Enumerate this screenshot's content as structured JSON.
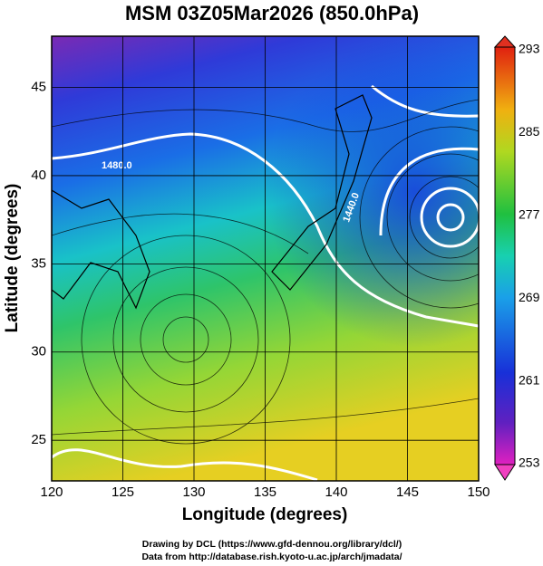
{
  "title": "MSM 03Z05Mar2026 (850.0hPa)",
  "x_axis": {
    "label": "Longitude (degrees)",
    "lim": [
      120,
      150
    ],
    "ticks": [
      120,
      125,
      130,
      135,
      140,
      145,
      150
    ]
  },
  "y_axis": {
    "label": "Latitude  (degrees)",
    "lim": [
      22.7,
      47.9
    ],
    "ticks": [
      25,
      30,
      35,
      40,
      45
    ]
  },
  "colorbar": {
    "lim": [
      253,
      293
    ],
    "ticks": [
      253,
      261,
      269,
      277,
      285,
      293
    ]
  },
  "contour_labels": [
    "1480.0",
    "1440.0"
  ],
  "footer": [
    "Drawing by DCL (https://www.gfd-dennou.org/library/dcl/)",
    "Data from http://database.rish.kyoto-u.ac.jp/arch/jmadata/"
  ]
}
